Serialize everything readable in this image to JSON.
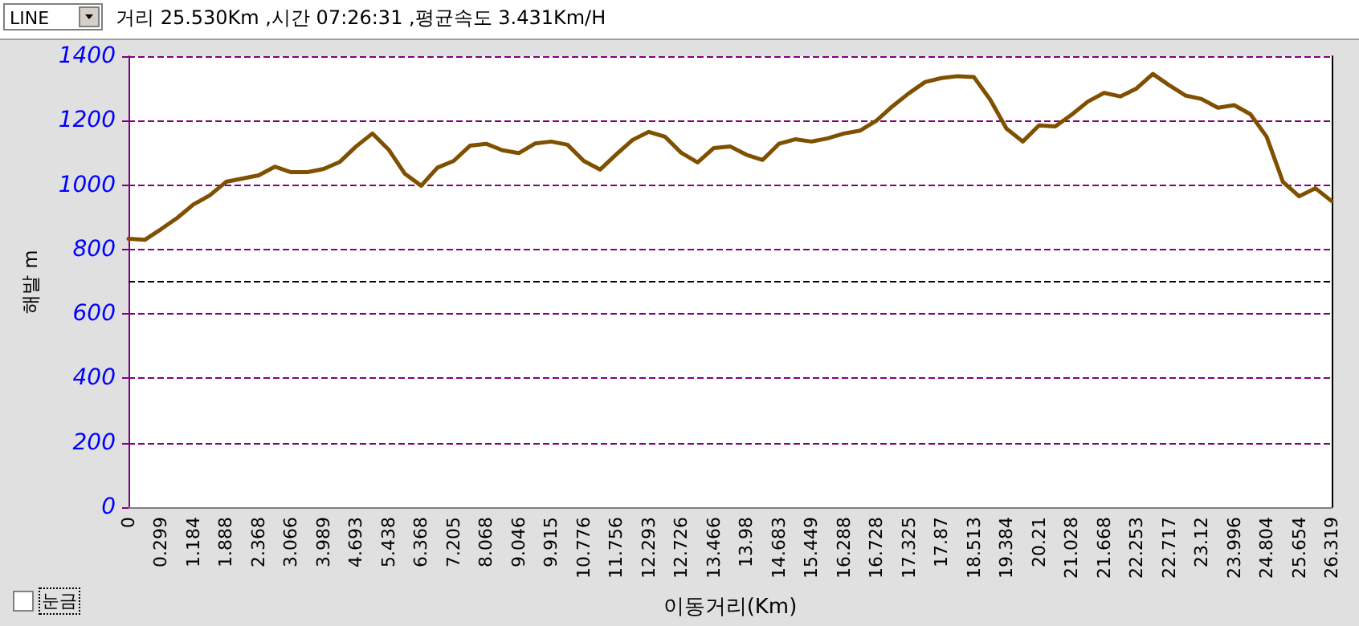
{
  "chart_data": {
    "type": "line",
    "title": "거리 25.530Km ,시간 07:26:31 ,평균속도 3.431Km/H",
    "xlabel": "이동거리(Km)",
    "ylabel": "해발 m",
    "annotations": [
      "LINE",
      "눈금"
    ],
    "categories": [
      "0",
      null,
      "0.299",
      null,
      "1.184",
      null,
      "1.888",
      null,
      "2.368",
      null,
      "3.066",
      null,
      "3.989",
      null,
      "4.693",
      null,
      "5.438",
      null,
      "6.368",
      null,
      "7.205",
      null,
      "8.068",
      null,
      "9.046",
      null,
      "9.915",
      null,
      "10.776",
      null,
      "11.756",
      null,
      "12.293",
      null,
      "12.726",
      null,
      "13.466",
      null,
      "13.98",
      null,
      "14.683",
      null,
      "15.449",
      null,
      "16.288",
      null,
      "16.728",
      null,
      "17.325",
      null,
      "17.87",
      null,
      "18.513",
      null,
      "19.384",
      null,
      "20.21",
      null,
      "21.028",
      null,
      "21.668",
      null,
      "22.253",
      null,
      "22.717",
      null,
      "23.12",
      null,
      "23.996",
      null,
      "24.804",
      null,
      "25.654",
      null,
      "26.319"
    ],
    "series": [
      {
        "color": "#7f5000",
        "values": [
          833,
          830,
          863,
          898,
          940,
          968,
          1010,
          1020,
          1030,
          1057,
          1040,
          1040,
          1050,
          1072,
          1120,
          1160,
          1110,
          1035,
          998,
          1054,
          1075,
          1122,
          1128,
          1108,
          1099,
          1129,
          1135,
          1125,
          1075,
          1048,
          1095,
          1140,
          1165,
          1150,
          1100,
          1070,
          1115,
          1120,
          1094,
          1078,
          1128,
          1142,
          1135,
          1145,
          1160,
          1169,
          1200,
          1245,
          1285,
          1320,
          1332,
          1338,
          1335,
          1265,
          1175,
          1135,
          1185,
          1182,
          1218,
          1259,
          1286,
          1275,
          1300,
          1345,
          1310,
          1278,
          1267,
          1240,
          1248,
          1220,
          1150,
          1010,
          965,
          990,
          950
        ]
      }
    ],
    "ylim": [
      0,
      1400
    ],
    "yticks": [
      0,
      200,
      400,
      600,
      800,
      1000,
      1200,
      1400
    ],
    "ref_lines": [
      {
        "axis": "y",
        "value": 700,
        "color": "#000000",
        "line_style": "dashed"
      }
    ],
    "grid": "y",
    "marker": "none",
    "line_style": "solid"
  }
}
